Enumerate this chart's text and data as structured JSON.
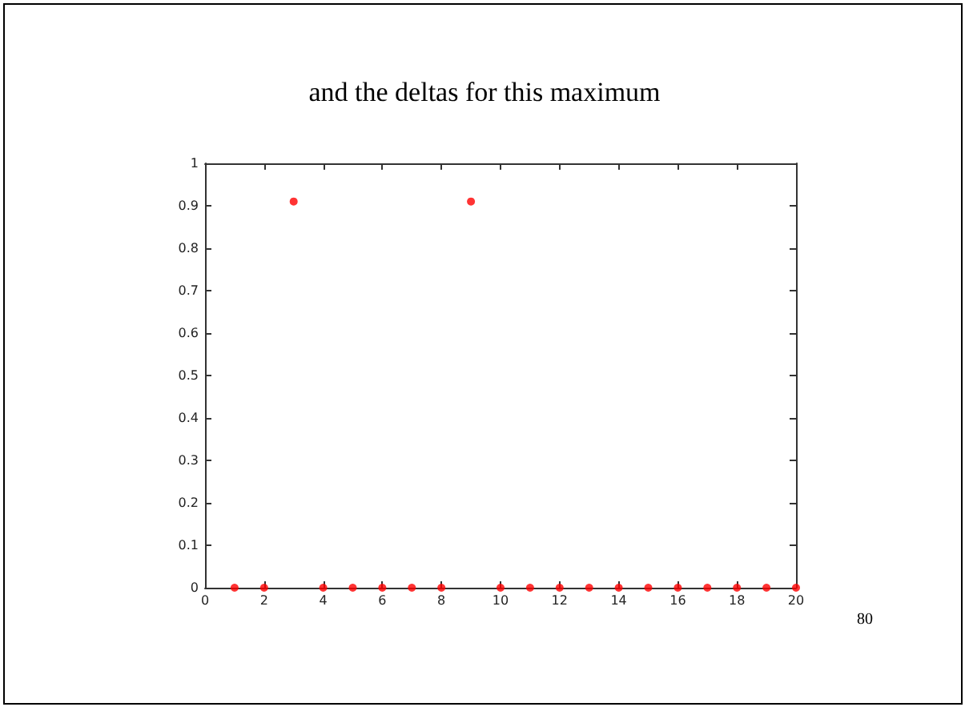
{
  "chart_data": {
    "type": "scatter",
    "title": "and the deltas for this maximum",
    "x": [
      1,
      2,
      3,
      4,
      5,
      6,
      7,
      8,
      9,
      10,
      11,
      12,
      13,
      14,
      15,
      16,
      17,
      18,
      19,
      20
    ],
    "series": [
      {
        "color": "#ff0000",
        "values": [
          0,
          0,
          0.91,
          0,
          0,
          0,
          0,
          0,
          0.91,
          0,
          0,
          0,
          0,
          0,
          0,
          0,
          0,
          0,
          0,
          0
        ]
      }
    ],
    "xlim": [
      0,
      20
    ],
    "xticks": [
      0,
      2,
      4,
      6,
      8,
      10,
      12,
      14,
      16,
      18,
      20
    ],
    "ylim": [
      0,
      1
    ],
    "yticks": [
      0,
      0.1,
      0.2,
      0.3,
      0.4,
      0.5,
      0.6,
      0.7,
      0.8,
      0.9,
      1
    ],
    "marker": "circle",
    "grid": false,
    "annotations": [
      "80"
    ]
  }
}
